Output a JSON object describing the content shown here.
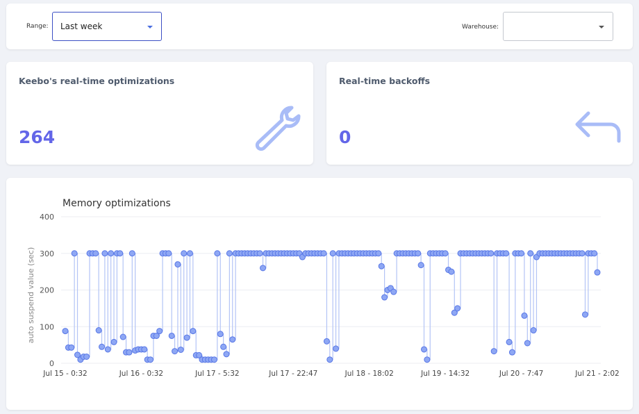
{
  "filters": {
    "range": {
      "label": "Range:",
      "value": "Last week"
    },
    "warehouse": {
      "label": "Warehouse:"
    }
  },
  "cards": [
    {
      "title": "Keebo's real-time optimizations",
      "value": 264
    },
    {
      "title": "Real-time backoffs",
      "value": 0
    }
  ],
  "chart_data": {
    "type": "step-scatter",
    "title": "Memory optimizations",
    "y_label": "auto suspend value (sec)",
    "color": "#8ea7f4",
    "edge_color": "#5877e6",
    "line_color": "#b3c4f6",
    "ylim": [
      0,
      400
    ],
    "yticks": [
      0,
      100,
      200,
      300,
      400
    ],
    "grid": true,
    "categories": [
      "Jul 15 - 0:32",
      null,
      null,
      null,
      null,
      null,
      null,
      null,
      null,
      null,
      null,
      null,
      null,
      null,
      null,
      null,
      null,
      null,
      null,
      null,
      null,
      null,
      null,
      null,
      null,
      "Jul 16 - 0:32",
      null,
      null,
      null,
      null,
      null,
      null,
      null,
      null,
      null,
      null,
      null,
      null,
      null,
      null,
      null,
      null,
      null,
      null,
      null,
      null,
      null,
      null,
      null,
      null,
      "Jul 17 - 5:32",
      null,
      null,
      null,
      null,
      null,
      null,
      null,
      null,
      null,
      null,
      null,
      null,
      null,
      null,
      null,
      null,
      null,
      null,
      null,
      null,
      null,
      null,
      null,
      null,
      "Jul 17 - 22:47",
      null,
      null,
      null,
      null,
      null,
      null,
      null,
      null,
      null,
      null,
      null,
      null,
      null,
      null,
      null,
      null,
      null,
      null,
      null,
      null,
      null,
      null,
      null,
      null,
      "Jul 18 - 18:02",
      null,
      null,
      null,
      null,
      null,
      null,
      null,
      null,
      null,
      null,
      null,
      null,
      null,
      null,
      null,
      null,
      null,
      null,
      null,
      null,
      null,
      null,
      null,
      null,
      "Jul 19 - 14:32",
      null,
      null,
      null,
      null,
      null,
      null,
      null,
      null,
      null,
      null,
      null,
      null,
      null,
      null,
      null,
      null,
      null,
      null,
      null,
      null,
      null,
      null,
      null,
      null,
      "Jul 20 - 7:47",
      null,
      null,
      null,
      null,
      null,
      null,
      null,
      null,
      null,
      null,
      null,
      null,
      null,
      null,
      null,
      null,
      null,
      null,
      null,
      null,
      null,
      null,
      null,
      null,
      "Jul 21 - 2:02"
    ],
    "values": [
      88,
      43,
      43,
      300,
      23,
      10,
      18,
      18,
      300,
      300,
      300,
      90,
      45,
      300,
      38,
      300,
      58,
      300,
      300,
      72,
      30,
      30,
      300,
      35,
      38,
      38,
      38,
      10,
      10,
      75,
      75,
      88,
      300,
      300,
      300,
      75,
      33,
      270,
      37,
      300,
      70,
      300,
      88,
      22,
      22,
      10,
      10,
      10,
      10,
      10,
      300,
      80,
      45,
      25,
      300,
      65,
      300,
      300,
      300,
      300,
      300,
      300,
      300,
      300,
      300,
      260,
      300,
      300,
      300,
      300,
      300,
      300,
      300,
      300,
      300,
      300,
      300,
      300,
      290,
      300,
      300,
      300,
      300,
      300,
      300,
      300,
      60,
      10,
      300,
      40,
      300,
      300,
      300,
      300,
      300,
      300,
      300,
      300,
      300,
      300,
      300,
      300,
      300,
      300,
      265,
      180,
      200,
      205,
      195,
      300,
      300,
      300,
      300,
      300,
      300,
      300,
      300,
      268,
      38,
      10,
      300,
      300,
      300,
      300,
      300,
      300,
      255,
      250,
      138,
      150,
      300,
      300,
      300,
      300,
      300,
      300,
      300,
      300,
      300,
      300,
      300,
      33,
      300,
      300,
      300,
      300,
      58,
      30,
      300,
      300,
      300,
      130,
      55,
      300,
      90,
      290,
      300,
      300,
      300,
      300,
      300,
      300,
      300,
      300,
      300,
      300,
      300,
      300,
      300,
      300,
      300,
      133,
      300,
      300,
      300,
      248
    ]
  }
}
